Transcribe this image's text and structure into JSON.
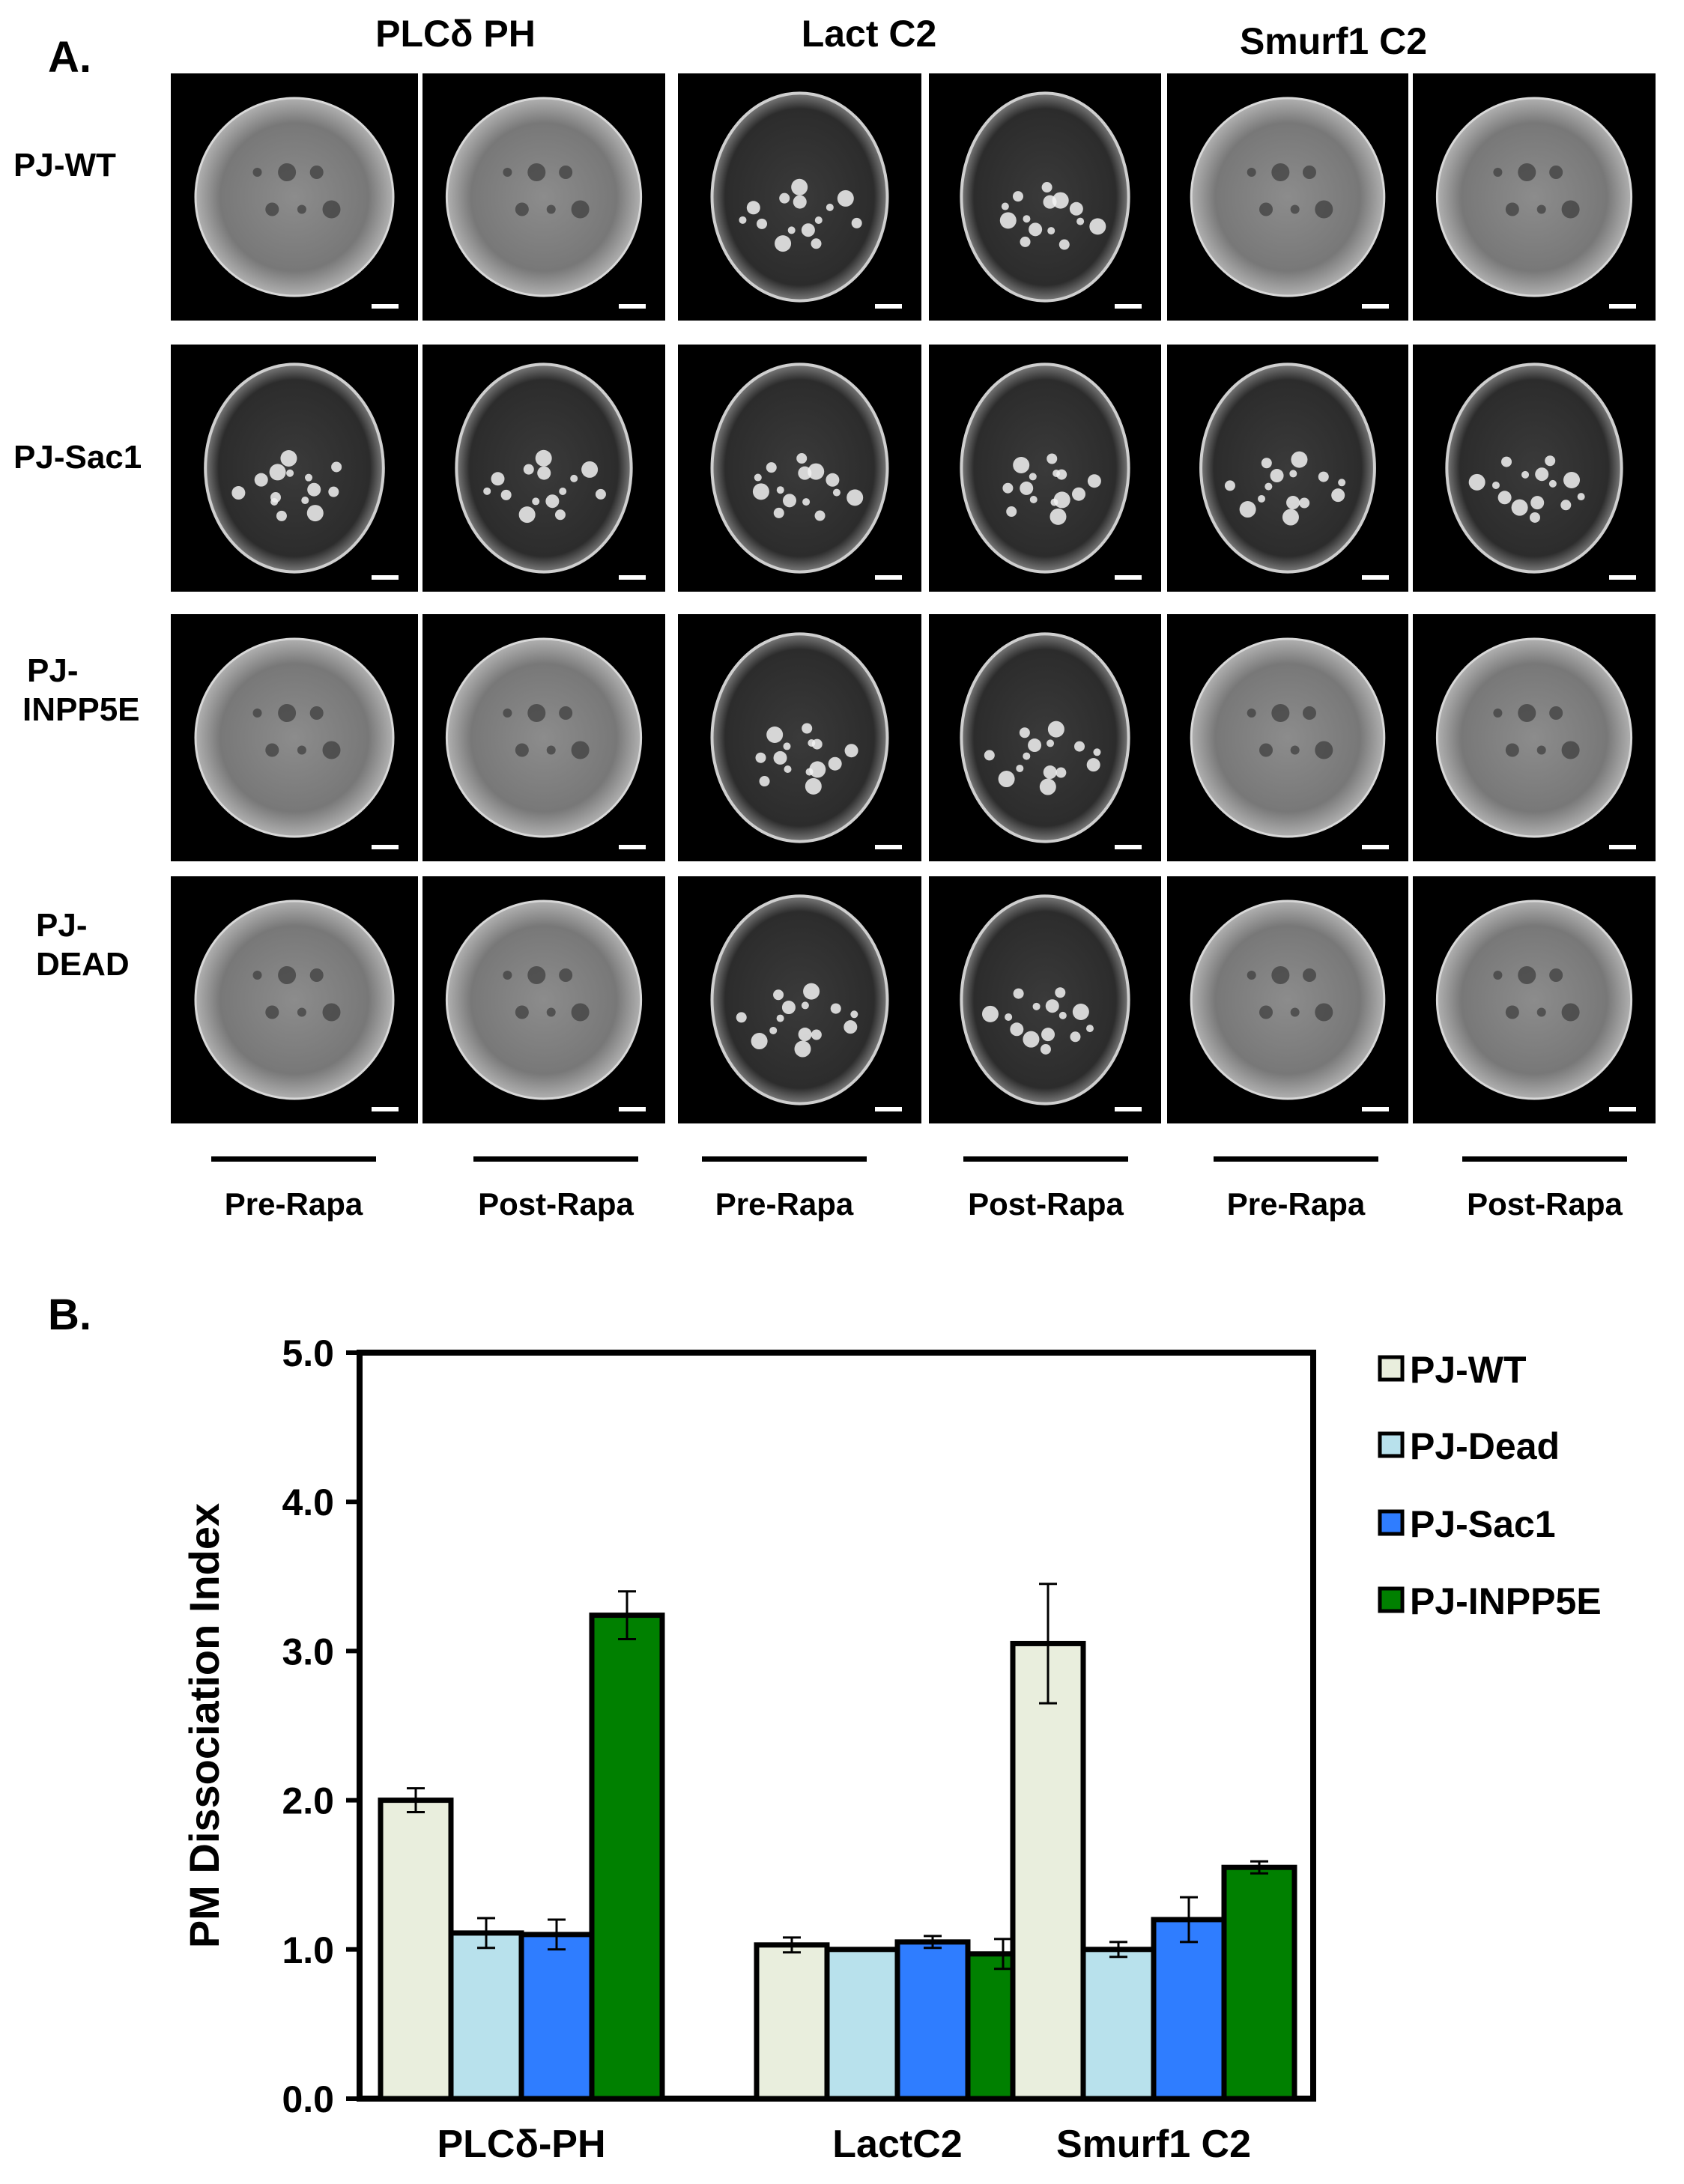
{
  "panel_a": {
    "label": "A.",
    "constructs": [
      "PLCδ PH",
      "Lact C2",
      "Smurf1 C2"
    ],
    "rows": [
      "PJ-WT",
      "PJ-Sac1",
      "PJ-\nINPP5E",
      "PJ-\nDEAD"
    ],
    "conditions": [
      "Pre-Rapa",
      "Post-Rapa",
      "Pre-Rapa",
      "Post-Rapa",
      "Pre-Rapa",
      "Post-Rapa"
    ]
  },
  "panel_b": {
    "label": "B."
  },
  "chart_data": {
    "type": "bar",
    "categories": [
      "PLCδ-PH",
      "LactC2",
      "Smurf1 C2"
    ],
    "ylabel": "PM Dissociation Index",
    "xlabel": "",
    "ylim": [
      0,
      5
    ],
    "yticks": [
      "0.0",
      "1.0",
      "2.0",
      "3.0",
      "4.0",
      "5.0"
    ],
    "grid": false,
    "legend_position": "right",
    "series": [
      {
        "name": "PJ-WT",
        "color": "#e9eedd",
        "values": [
          2.0,
          1.03,
          3.05
        ],
        "errors": [
          0.08,
          0.05,
          0.4
        ]
      },
      {
        "name": "PJ-Dead",
        "color": "#b8e1ec",
        "values": [
          1.11,
          1.0,
          1.0
        ],
        "errors": [
          0.1,
          0.0,
          0.05
        ]
      },
      {
        "name": "PJ-Sac1",
        "color": "#2f7dff",
        "values": [
          1.1,
          1.05,
          1.2
        ],
        "errors": [
          0.1,
          0.04,
          0.15
        ]
      },
      {
        "name": "PJ-INPP5E",
        "color": "#008000",
        "values": [
          3.24,
          0.97,
          1.55
        ],
        "errors": [
          0.16,
          0.1,
          0.04
        ]
      }
    ]
  }
}
